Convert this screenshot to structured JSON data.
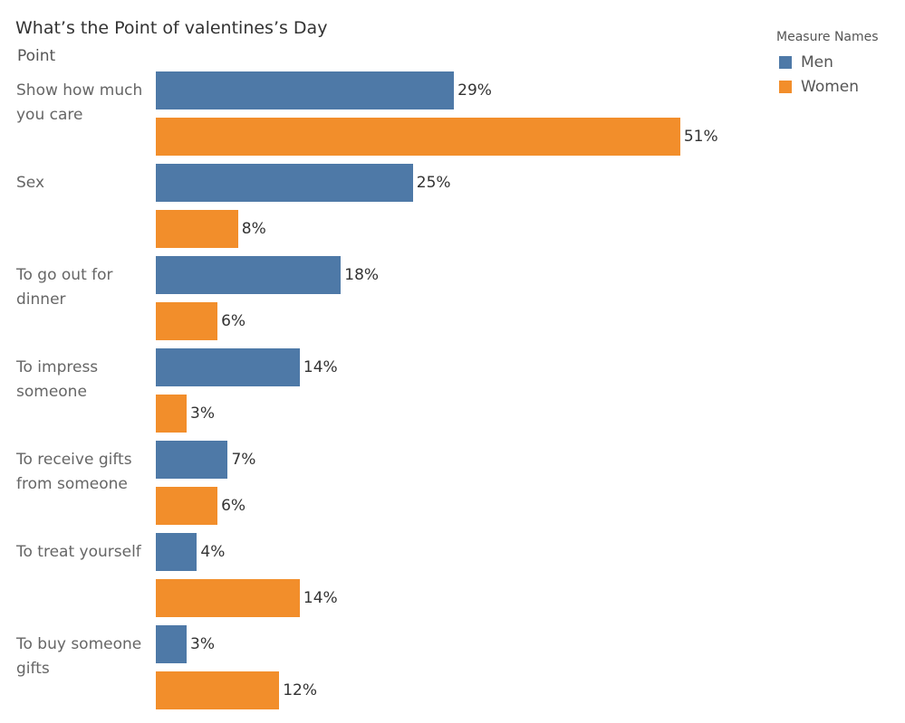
{
  "title": "What’s the Point of valentines’s Day",
  "axis_header": "Point",
  "legend": {
    "title": "Measure Names",
    "items": [
      {
        "label": "Men",
        "color": "#4e79a7"
      },
      {
        "label": "Women",
        "color": "#f28e2b"
      }
    ]
  },
  "chart_data": {
    "type": "bar",
    "orientation": "horizontal",
    "categories": [
      "Show how much you care",
      "Sex",
      "To go out for dinner",
      "To impress someone",
      "To receive gifts from someone",
      "To treat yourself",
      "To buy someone gifts"
    ],
    "series": [
      {
        "name": "Men",
        "color": "#4e79a7",
        "values": [
          29,
          25,
          18,
          14,
          7,
          4,
          3
        ],
        "labels": [
          "29%",
          "25%",
          "18%",
          "14%",
          "7%",
          "4%",
          "3%"
        ]
      },
      {
        "name": "Women",
        "color": "#f28e2b",
        "values": [
          51,
          8,
          6,
          3,
          6,
          14,
          12
        ],
        "labels": [
          "51%",
          "8%",
          "6%",
          "3%",
          "6%",
          "14%",
          "12%"
        ]
      }
    ],
    "ylabel": "Point",
    "unit": "%",
    "grid": false,
    "legend_position": "top-right"
  }
}
